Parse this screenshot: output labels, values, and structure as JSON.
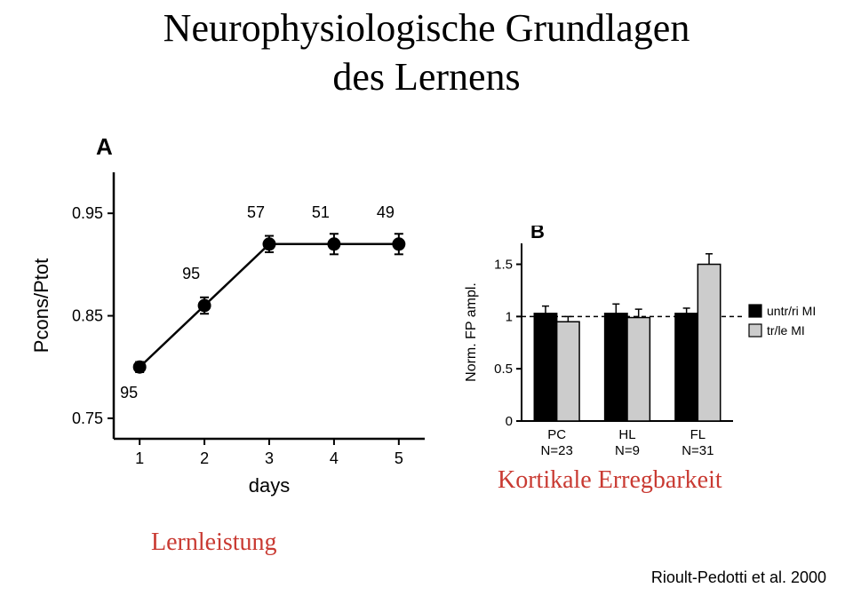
{
  "title_line1": "Neurophysiologische Grundlagen",
  "title_line2": "des Lernens",
  "caption_left": "Lernleistung",
  "caption_right": "Kortikale Erregbarkeit",
  "citation": "Rioult-Pedotti et al. 2000",
  "panelA": {
    "label": "A",
    "type": "line-scatter",
    "xlabel": "days",
    "ylabel": "Pcons/Ptot",
    "xlim": [
      0.6,
      5.4
    ],
    "ylim": [
      0.73,
      0.99
    ],
    "xticks": [
      1,
      2,
      3,
      4,
      5
    ],
    "yticks": [
      0.75,
      0.85,
      0.95
    ],
    "points": [
      {
        "x": 1,
        "y": 0.8,
        "yerr": 0.005,
        "lbl": "95"
      },
      {
        "x": 2,
        "y": 0.86,
        "yerr": 0.008,
        "lbl": "95"
      },
      {
        "x": 3,
        "y": 0.92,
        "yerr": 0.008,
        "lbl": "57"
      },
      {
        "x": 4,
        "y": 0.92,
        "yerr": 0.01,
        "lbl": "51"
      },
      {
        "x": 5,
        "y": 0.92,
        "yerr": 0.01,
        "lbl": "49"
      }
    ],
    "marker_color": "#000000",
    "line_color": "#000000",
    "axis_color": "#000000",
    "label_fontsize": 22,
    "tick_fontsize": 18,
    "panel_label_fontsize": 26,
    "point_label_fontsize": 18,
    "marker_radius": 7,
    "line_width": 2.5
  },
  "panelB": {
    "label": "B",
    "type": "bar",
    "ylabel": "Norm. FP ampl.",
    "ylim": [
      0,
      1.7
    ],
    "yticks": [
      0,
      0.5,
      1,
      1.5
    ],
    "groups": [
      {
        "name": "PC",
        "n_label": "N=23",
        "bars": [
          {
            "y": 1.03,
            "err": 0.07,
            "fill": "#000000"
          },
          {
            "y": 0.95,
            "err": 0.05,
            "fill": "#cccccc"
          }
        ]
      },
      {
        "name": "HL",
        "n_label": "N=9",
        "bars": [
          {
            "y": 1.03,
            "err": 0.09,
            "fill": "#000000"
          },
          {
            "y": 0.99,
            "err": 0.08,
            "fill": "#cccccc"
          }
        ]
      },
      {
        "name": "FL",
        "n_label": "N=31",
        "bars": [
          {
            "y": 1.03,
            "err": 0.05,
            "fill": "#000000"
          },
          {
            "y": 1.5,
            "err": 0.1,
            "fill": "#cccccc"
          }
        ]
      }
    ],
    "legend": [
      {
        "label": "untr/ri MI",
        "fill": "#000000"
      },
      {
        "label": "tr/le MI",
        "fill": "#cccccc"
      }
    ],
    "dashed_ref": 1.0,
    "axis_color": "#000000",
    "label_fontsize": 16,
    "tick_fontsize": 15,
    "panel_label_fontsize": 22,
    "stroke_color": "#000000"
  }
}
